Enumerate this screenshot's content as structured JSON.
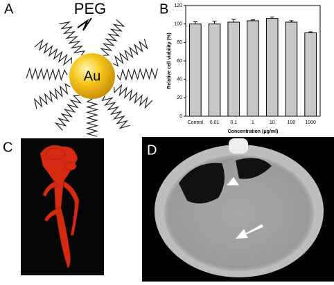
{
  "panels": {
    "a": {
      "label": "A",
      "peg": "PEG",
      "core": "Au"
    },
    "c": {
      "label": "C"
    },
    "d": {
      "label": "D"
    }
  },
  "chart_data": {
    "type": "bar",
    "panel_label": "B",
    "categories": [
      "Control",
      "0.01",
      "0.1",
      "1",
      "10",
      "100",
      "1000"
    ],
    "values": [
      100,
      100,
      102,
      103.5,
      106,
      102,
      90.5
    ],
    "errors": [
      2.5,
      3,
      3,
      1,
      1.5,
      1.5,
      1
    ],
    "color": "#c8c8c8",
    "ylim": [
      0,
      120
    ],
    "yticks": [
      0,
      20,
      40,
      60,
      80,
      100,
      120
    ],
    "ylabel": "Relative cell viability (%)",
    "xlabel": "Concentration (μg/ml)"
  }
}
